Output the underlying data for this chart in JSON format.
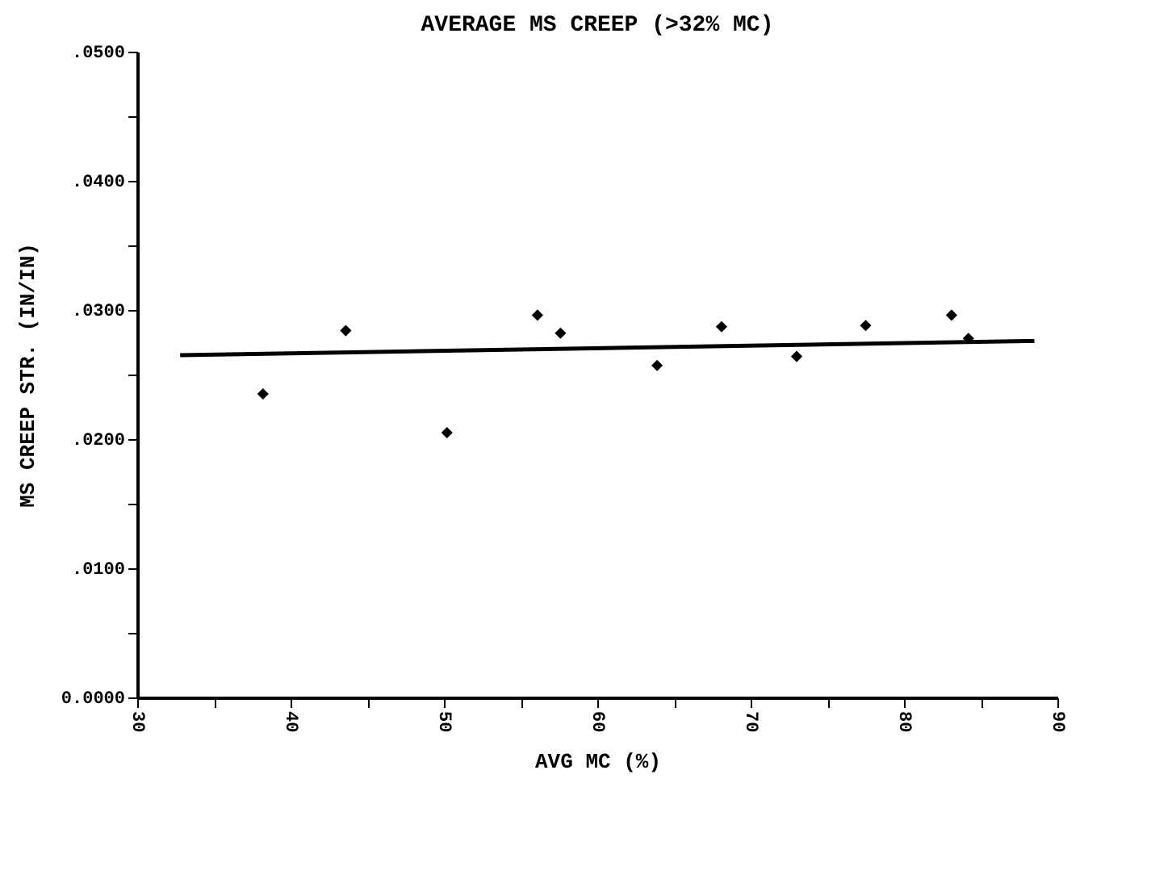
{
  "chart_data": {
    "type": "scatter",
    "title": "AVERAGE MS CREEP (>32% MC)",
    "xlabel": "AVG MC (%)",
    "ylabel": "MS CREEP STR. (IN/IN)",
    "xlim": [
      30,
      90
    ],
    "xticks": [
      30,
      {
        "value": 35,
        "label": null
      },
      40,
      {
        "value": 45,
        "label": null
      },
      50,
      {
        "value": 55,
        "label": null
      },
      60,
      {
        "value": 65,
        "label": null
      },
      70,
      {
        "value": 75,
        "label": null
      },
      80,
      {
        "value": 85,
        "label": null
      },
      90
    ],
    "ylim": [
      0,
      0.05
    ],
    "yticks": [
      {
        "value": 0,
        "label": "0.0000"
      },
      {
        "value": 0.005,
        "label": null
      },
      {
        "value": 0.01,
        "label": ".0100"
      },
      {
        "value": 0.015,
        "label": null
      },
      {
        "value": 0.02,
        "label": ".0200"
      },
      {
        "value": 0.025,
        "label": null
      },
      {
        "value": 0.03,
        "label": ".0300"
      },
      {
        "value": 0.035,
        "label": null
      },
      {
        "value": 0.04,
        "label": ".0400"
      },
      {
        "value": 0.045,
        "label": null
      },
      {
        "value": 0.05,
        "label": ".0500"
      }
    ],
    "grid": false,
    "marker": "diamond",
    "series": [
      {
        "color": "#000000",
        "x": [
          38.2,
          43.6,
          50.2,
          56.1,
          57.6,
          63.9,
          68.1,
          73.0,
          77.5,
          83.1,
          84.2
        ],
        "values": [
          0.0235,
          0.0284,
          0.0205,
          0.0296,
          0.0282,
          0.0257,
          0.0287,
          0.0264,
          0.0288,
          0.0296,
          0.0278
        ]
      },
      {
        "type": "line",
        "color": "#000000",
        "line_style": "solid",
        "marker": "none",
        "x": [
          32.8,
          88.5
        ],
        "values": [
          0.0265,
          0.0276
        ]
      }
    ]
  }
}
